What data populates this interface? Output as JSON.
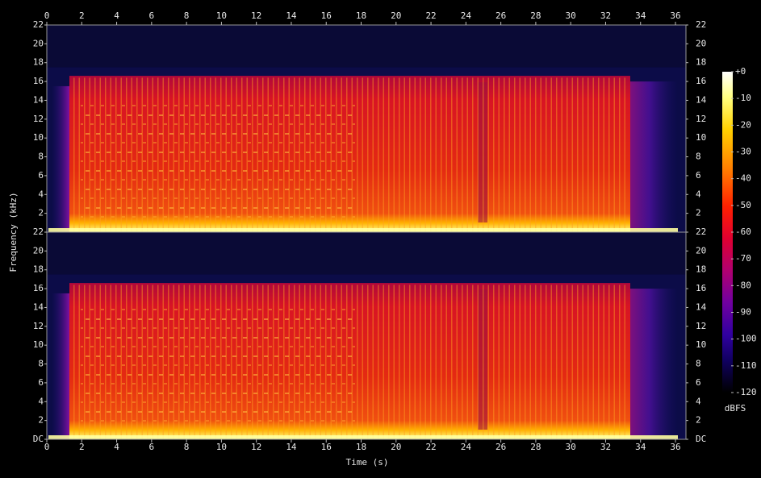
{
  "chart_data": {
    "type": "spectrogram",
    "xlabel": "Time (s)",
    "ylabel": "Frequency (kHz)",
    "xlim": [
      0,
      36.6
    ],
    "xticks": [
      0,
      2,
      4,
      6,
      8,
      10,
      12,
      14,
      16,
      18,
      20,
      22,
      24,
      26,
      28,
      30,
      32,
      34,
      36
    ],
    "ylim": [
      0,
      22
    ],
    "channels": [
      {
        "yticks": [
          2,
          4,
          6,
          8,
          10,
          12,
          14,
          16,
          18,
          20,
          22
        ]
      },
      {
        "yticks": [
          {
            "value": 0,
            "label": "DC"
          },
          2,
          4,
          6,
          8,
          10,
          12,
          14,
          16,
          18,
          20,
          22
        ]
      }
    ],
    "colorbar": {
      "label": "dBFS",
      "clim": [
        -120,
        0
      ],
      "ticks": [
        {
          "value": 0,
          "label": "+0"
        },
        -10,
        -20,
        -30,
        -40,
        -50,
        -60,
        -70,
        -80,
        -90,
        -100,
        -110,
        -120
      ]
    }
  }
}
